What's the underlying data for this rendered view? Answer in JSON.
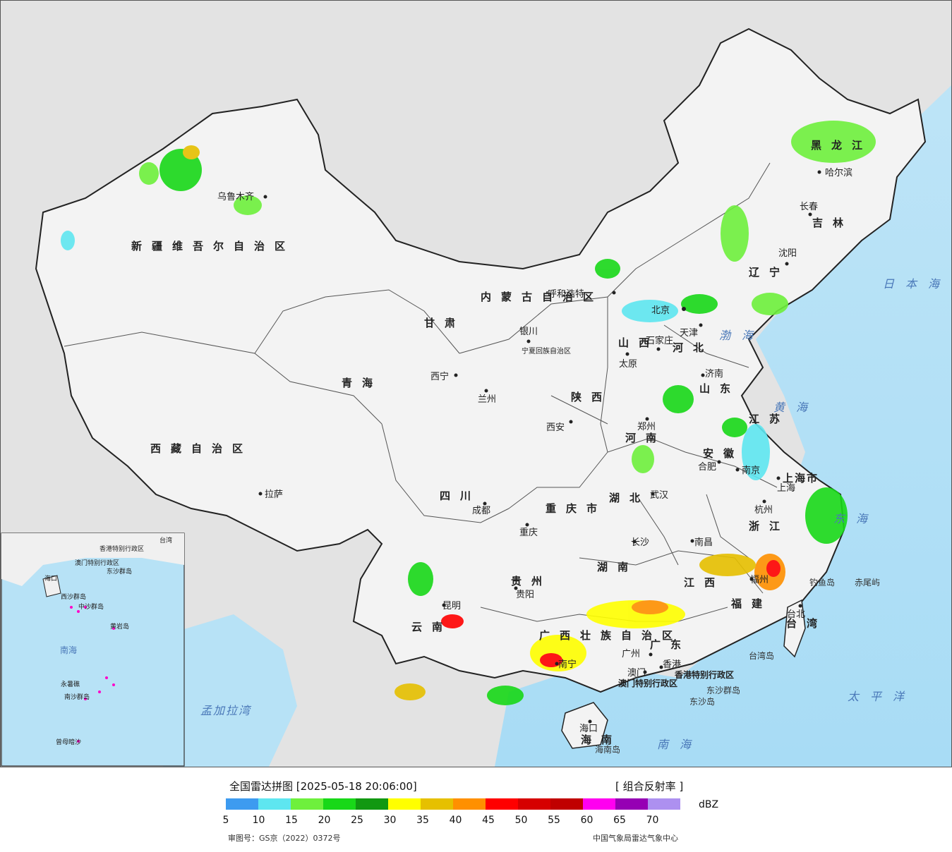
{
  "map": {
    "provinces": [
      {
        "name": "新疆维吾尔自治区"
      },
      {
        "name": "西藏自治区"
      },
      {
        "name": "青海"
      },
      {
        "name": "甘肃"
      },
      {
        "name": "内蒙古自治区"
      },
      {
        "name": "黑龙江"
      },
      {
        "name": "吉林"
      },
      {
        "name": "辽宁"
      },
      {
        "name": "河北"
      },
      {
        "name": "山西"
      },
      {
        "name": "山东"
      },
      {
        "name": "陕西"
      },
      {
        "name": "河南"
      },
      {
        "name": "江苏"
      },
      {
        "name": "安徽"
      },
      {
        "name": "四川"
      },
      {
        "name": "湖北"
      },
      {
        "name": "浙江"
      },
      {
        "name": "江西"
      },
      {
        "name": "湖南"
      },
      {
        "name": "贵州"
      },
      {
        "name": "云南"
      },
      {
        "name": "福建"
      },
      {
        "name": "广西壮族自治区"
      },
      {
        "name": "广东"
      },
      {
        "name": "海南"
      },
      {
        "name": "台湾"
      },
      {
        "name": "宁夏回族自治区"
      },
      {
        "name": "重庆市"
      },
      {
        "name": "上海市"
      },
      {
        "name": "香港特别行政区"
      },
      {
        "name": "澳门特别行政区"
      }
    ],
    "cities": [
      {
        "name": "乌鲁木齐"
      },
      {
        "name": "拉萨"
      },
      {
        "name": "西宁"
      },
      {
        "name": "兰州"
      },
      {
        "name": "银川"
      },
      {
        "name": "呼和浩特"
      },
      {
        "name": "哈尔滨"
      },
      {
        "name": "长春"
      },
      {
        "name": "沈阳"
      },
      {
        "name": "北京"
      },
      {
        "name": "天津"
      },
      {
        "name": "石家庄"
      },
      {
        "name": "太原"
      },
      {
        "name": "济南"
      },
      {
        "name": "西安"
      },
      {
        "name": "郑州"
      },
      {
        "name": "合肥"
      },
      {
        "name": "南京"
      },
      {
        "name": "上海"
      },
      {
        "name": "杭州"
      },
      {
        "name": "成都"
      },
      {
        "name": "重庆"
      },
      {
        "name": "武汉"
      },
      {
        "name": "长沙"
      },
      {
        "name": "南昌"
      },
      {
        "name": "福州"
      },
      {
        "name": "贵阳"
      },
      {
        "name": "昆明"
      },
      {
        "name": "南宁"
      },
      {
        "name": "广州"
      },
      {
        "name": "香港"
      },
      {
        "name": "澳门"
      },
      {
        "name": "海口"
      },
      {
        "name": "台北"
      }
    ],
    "seas": [
      {
        "name": "日本海"
      },
      {
        "name": "渤海"
      },
      {
        "name": "黄海"
      },
      {
        "name": "东海"
      },
      {
        "name": "太平洋"
      },
      {
        "name": "南海"
      },
      {
        "name": "孟加拉湾"
      }
    ],
    "islands": [
      {
        "name": "钓鱼岛"
      },
      {
        "name": "赤尾屿"
      },
      {
        "name": "台湾岛"
      },
      {
        "name": "东沙群岛"
      },
      {
        "name": "东沙岛"
      },
      {
        "name": "海南岛"
      }
    ],
    "inset": {
      "labels": [
        "南海",
        "东沙群岛",
        "西沙群岛",
        "中沙群岛",
        "黄岩岛",
        "南沙群岛",
        "永暑礁",
        "曾母暗沙",
        "海口",
        "台湾",
        "香港特别行政区",
        "澳门特别行政区"
      ]
    }
  },
  "legend": {
    "title": "全国雷达拼图 [2025-05-18 20:06:00]",
    "product": "[ 组合反射率 ]",
    "unit": "dBZ",
    "colors": [
      "#3d9bf0",
      "#5ee6f0",
      "#6ef03c",
      "#18d818",
      "#119811",
      "#ffff00",
      "#e6c000",
      "#ff9000",
      "#ff0000",
      "#d60000",
      "#c00000",
      "#ff00f0",
      "#9600b4",
      "#ad90f0"
    ],
    "ticks": [
      "5",
      "10",
      "15",
      "20",
      "25",
      "30",
      "35",
      "40",
      "45",
      "50",
      "55",
      "60",
      "65",
      "70"
    ],
    "approval": "审图号：GS京（2022）0372号",
    "source": "中国气象局雷达气象中心"
  }
}
